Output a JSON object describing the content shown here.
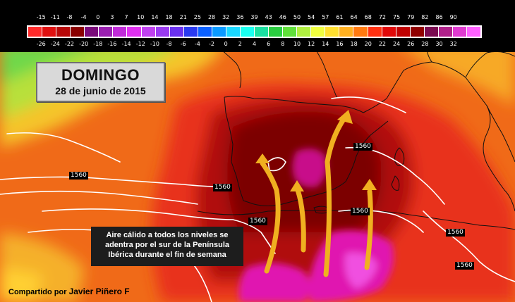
{
  "legend": {
    "top_ticks": [
      "-15",
      "-11",
      "-8",
      "-4",
      "0",
      "3",
      "7",
      "10",
      "14",
      "18",
      "21",
      "25",
      "28",
      "32",
      "36",
      "39",
      "43",
      "46",
      "50",
      "54",
      "57",
      "61",
      "64",
      "68",
      "72",
      "75",
      "79",
      "82",
      "86",
      "90"
    ],
    "bottom_ticks": [
      "-26",
      "-24",
      "-22",
      "-20",
      "-18",
      "-16",
      "-14",
      "-12",
      "-10",
      "-8",
      "-6",
      "-4",
      "-2",
      "0",
      "2",
      "4",
      "6",
      "8",
      "10",
      "12",
      "14",
      "16",
      "18",
      "20",
      "22",
      "24",
      "26",
      "28",
      "30",
      "32"
    ],
    "colors": [
      "#ff2a2a",
      "#e01010",
      "#b80808",
      "#8a0000",
      "#7a0a7a",
      "#9a1fb0",
      "#c02ad8",
      "#e030f0",
      "#c040f0",
      "#9a3af0",
      "#6a30f0",
      "#2a3af0",
      "#0a60ff",
      "#0a9aff",
      "#1ad8ff",
      "#1afff0",
      "#1ae0a0",
      "#2acd40",
      "#60e03a",
      "#b0f040",
      "#f0ff40",
      "#ffe030",
      "#ffb020",
      "#ff7a10",
      "#ff3010",
      "#e00808",
      "#c00000",
      "#900000",
      "#7a0a50",
      "#b0208a",
      "#e03ad0",
      "#ff60ff"
    ]
  },
  "title": {
    "day": "DOMINGO",
    "date": "28 de junio de 2015"
  },
  "annotation": {
    "line1": "Aire cálido a todos los niveles se",
    "line2": "adentra por el sur de la Península",
    "line3": "Ibérica durante el fin de semana"
  },
  "contour_labels": [
    "1560",
    "1560",
    "1560",
    "1560",
    "1560",
    "1560",
    "1560"
  ],
  "credit": {
    "prefix": "Compartido por",
    "name": "Javier Piñero F"
  }
}
